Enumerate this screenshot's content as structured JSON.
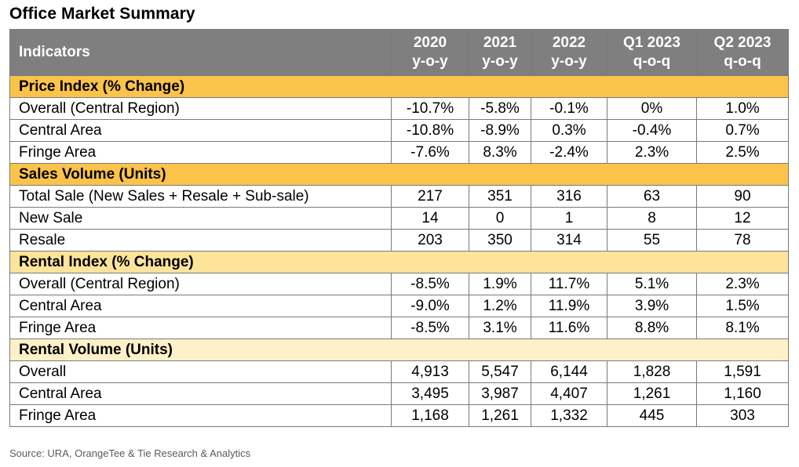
{
  "title": "Office Market Summary",
  "source": "Source: URA, OrangeTee & Tie Research & Analytics",
  "colors": {
    "header_bg": "#7f7f7f",
    "section_price": "#fbc34a",
    "section_sales": "#fbc34a",
    "section_rental_index": "#fde49a",
    "section_rental_volume": "#fef1c7"
  },
  "chart_data": {
    "type": "table",
    "title": "Office Market Summary",
    "columns": [
      {
        "line1": "Indicators",
        "line2": ""
      },
      {
        "line1": "2020",
        "line2": "y-o-y"
      },
      {
        "line1": "2021",
        "line2": "y-o-y"
      },
      {
        "line1": "2022",
        "line2": "y-o-y"
      },
      {
        "line1": "Q1 2023",
        "line2": "q-o-q"
      },
      {
        "line1": "Q2 2023",
        "line2": "q-o-q"
      }
    ],
    "sections": [
      {
        "name": "Price Index (% Change)",
        "style": "orange",
        "rows": [
          {
            "label": "Overall (Central Region)",
            "values": [
              "-10.7%",
              "-5.8%",
              "-0.1%",
              "0%",
              "1.0%"
            ]
          },
          {
            "label": "Central Area",
            "values": [
              "-10.8%",
              "-8.9%",
              "0.3%",
              "-0.4%",
              "0.7%"
            ]
          },
          {
            "label": "Fringe Area",
            "values": [
              "-7.6%",
              "8.3%",
              "-2.4%",
              "2.3%",
              "2.5%"
            ]
          }
        ]
      },
      {
        "name": "Sales Volume (Units)",
        "style": "orange",
        "rows": [
          {
            "label": "Total Sale (New Sales + Resale + Sub-sale)",
            "values": [
              "217",
              "351",
              "316",
              "63",
              "90"
            ]
          },
          {
            "label": "New Sale",
            "values": [
              "14",
              "0",
              "1",
              "8",
              "12"
            ]
          },
          {
            "label": "Resale",
            "values": [
              "203",
              "350",
              "314",
              "55",
              "78"
            ]
          }
        ]
      },
      {
        "name": "Rental Index (% Change)",
        "style": "light",
        "rows": [
          {
            "label": "Overall (Central Region)",
            "values": [
              "-8.5%",
              "1.9%",
              "11.7%",
              "5.1%",
              "2.3%"
            ]
          },
          {
            "label": "Central Area",
            "values": [
              "-9.0%",
              "1.2%",
              "11.9%",
              "3.9%",
              "1.5%"
            ]
          },
          {
            "label": "Fringe Area",
            "values": [
              "-8.5%",
              "3.1%",
              "11.6%",
              "8.8%",
              "8.1%"
            ]
          }
        ]
      },
      {
        "name": "Rental Volume (Units)",
        "style": "pale",
        "rows": [
          {
            "label": "Overall",
            "values": [
              "4,913",
              "5,547",
              "6,144",
              "1,828",
              "1,591"
            ]
          },
          {
            "label": "Central Area",
            "values": [
              "3,495",
              "3,987",
              "4,407",
              "1,261",
              "1,160"
            ]
          },
          {
            "label": "Fringe Area",
            "values": [
              "1,168",
              "1,261",
              "1,332",
              "445",
              "303"
            ]
          }
        ]
      }
    ]
  }
}
